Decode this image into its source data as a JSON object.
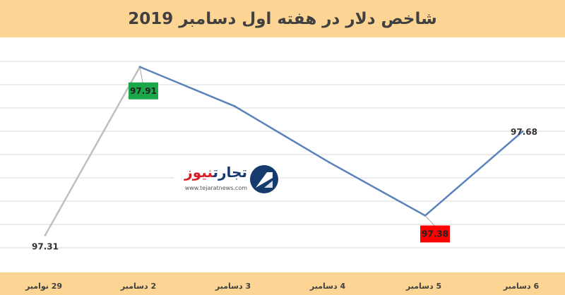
{
  "title": "شاخص دلار در هفته اول دسامبر 2019",
  "logo": {
    "name_part1": "تجارت",
    "name_part2": "نیوز",
    "url": "www.tejaratnews.com"
  },
  "colors": {
    "header_bg": "#fcd494",
    "line_main": "#5b83bb",
    "line_start": "#bfbfbf",
    "max_label_bg": "#1aa84b",
    "min_label_bg": "#ff0000",
    "grid": "#d9d9d9"
  },
  "chart_data": {
    "type": "line",
    "title": "شاخص دلار در هفته اول دسامبر 2019",
    "categories": [
      "29 نوامبر",
      "2 دسامبر",
      "3 دسامبر",
      "4 دسامبر",
      "5 دسامبر",
      "6 دسامبر"
    ],
    "values": [
      97.31,
      97.91,
      97.77,
      97.57,
      97.38,
      97.68
    ],
    "data_labels": [
      "97.31",
      "97.91",
      "",
      "",
      "97.38",
      "97.68"
    ],
    "highlight": {
      "max_index": 1,
      "min_index": 4
    },
    "ylim": [
      97.18,
      98.01
    ],
    "grid": true,
    "xlabel": "",
    "ylabel": ""
  }
}
